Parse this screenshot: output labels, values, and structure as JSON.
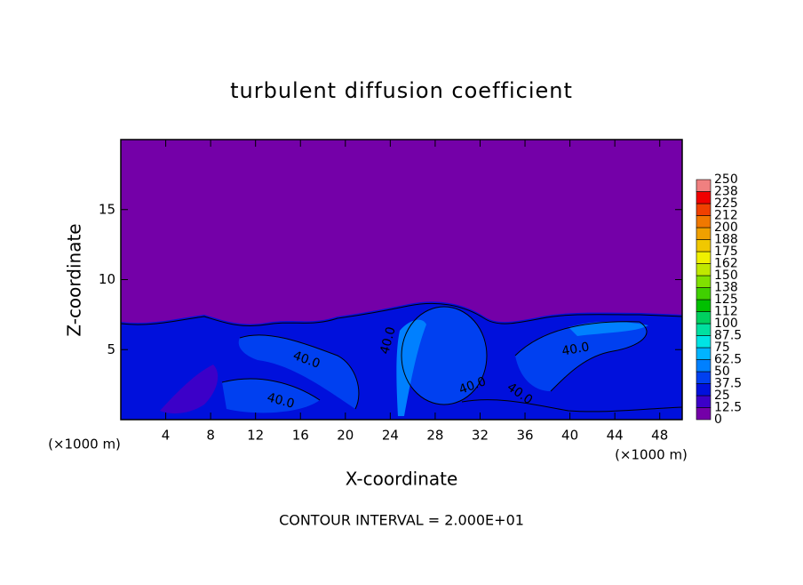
{
  "chart_data": {
    "type": "contour",
    "title": "turbulent diffusion coefficient",
    "xlabel": "X-coordinate",
    "ylabel": "Z-coordinate",
    "x_unit": "(×1000 m)",
    "y_unit": "(×1000 m)",
    "footnote": "CONTOUR INTERVAL = 2.000E+01",
    "xlim": [
      0,
      50
    ],
    "xticks": [
      4,
      8,
      12,
      16,
      20,
      24,
      28,
      32,
      36,
      40,
      44,
      48
    ],
    "ylim": [
      0,
      20
    ],
    "yticks": [
      5,
      10,
      15
    ],
    "contour_labels": [
      "40.0",
      "40.0",
      "40.0",
      "40.0",
      "40.0",
      "40.0"
    ],
    "colorbar": {
      "levels": [
        0,
        12.5,
        25,
        37.5,
        50,
        62.5,
        75,
        87.5,
        100,
        {
          "value": 112.5,
          "label": "112"
        },
        125,
        {
          "value": 137.5,
          "label": "138"
        },
        150,
        {
          "value": 162.5,
          "label": "162"
        },
        175,
        {
          "value": 187.5,
          "label": "188"
        },
        200,
        {
          "value": 212.5,
          "label": "212"
        },
        225,
        {
          "value": 237.5,
          "label": "238"
        },
        250
      ],
      "colors": [
        "#7400a8",
        "#3c00c8",
        "#0010dc",
        "#0040f0",
        "#0080ff",
        "#00b4ff",
        "#00e4e4",
        "#00e0a0",
        "#00d060",
        "#00c000",
        "#40d000",
        "#80e000",
        "#c0e800",
        "#f0f000",
        "#f0c800",
        "#f0a000",
        "#f07800",
        "#f04000",
        "#f00000",
        "#f08080"
      ]
    }
  }
}
